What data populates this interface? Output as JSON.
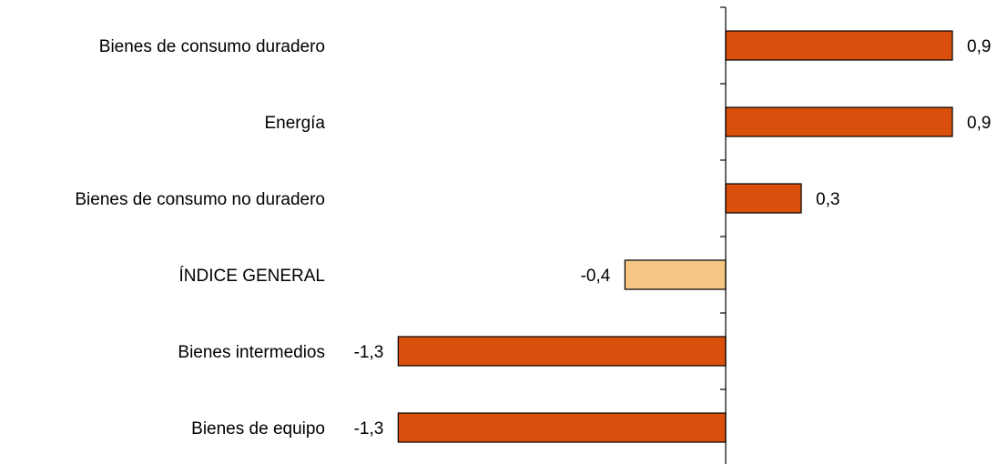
{
  "chart_data": {
    "type": "bar",
    "orientation": "horizontal",
    "categories": [
      "Bienes de consumo duradero",
      "Energía",
      "Bienes de consumo no duradero",
      "ÍNDICE GENERAL",
      "Bienes intermedios",
      "Bienes de equipo"
    ],
    "values": [
      0.9,
      0.9,
      0.3,
      -0.4,
      -1.3,
      -1.3
    ],
    "value_labels": [
      "0,9",
      "0,9",
      "0,3",
      "-0,4",
      "-1,3",
      "-1,3"
    ],
    "title": "",
    "xlabel": "",
    "ylabel": "",
    "xlim": [
      -1.3,
      0.9
    ],
    "grid": false,
    "legend": "none",
    "colors": {
      "default": "#d94f0b",
      "highlight": "#f5c583",
      "highlight_category": "ÍNDICE GENERAL",
      "border": "#000000"
    }
  }
}
